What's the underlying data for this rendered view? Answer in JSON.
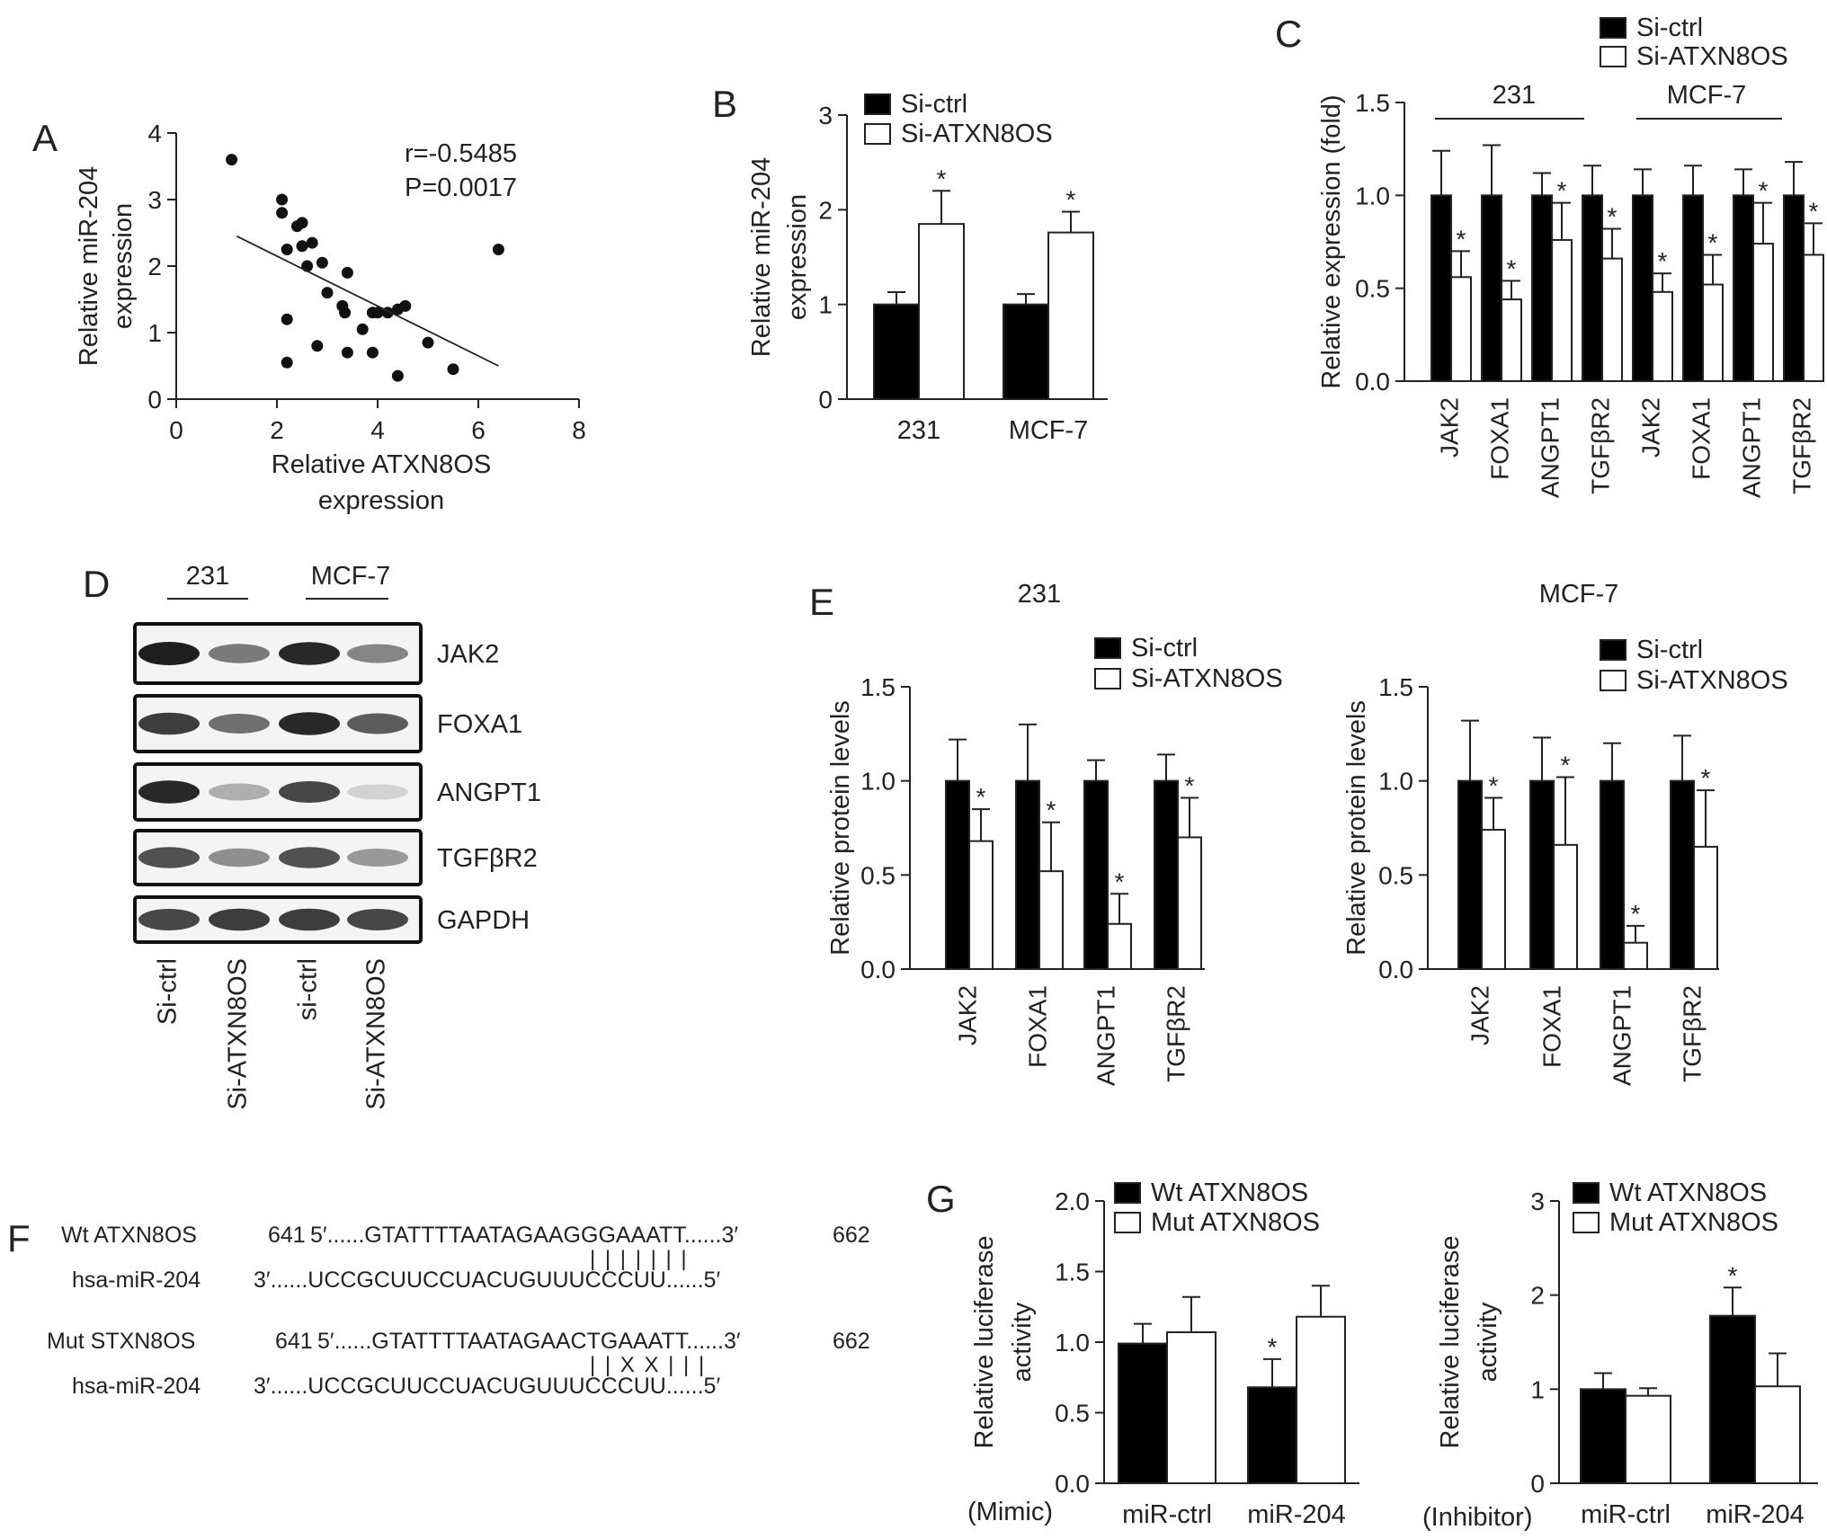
{
  "panels": {
    "A": {
      "letter": "A",
      "chart_data": {
        "type": "scatter",
        "xlabel": [
          "Relative ATXN8OS",
          "expression"
        ],
        "ylabel": [
          "Relative miR-204",
          "expression"
        ],
        "xlim": [
          0,
          8
        ],
        "ylim": [
          0,
          4
        ],
        "xticks": [
          0,
          2,
          4,
          6,
          8
        ],
        "yticks": [
          0,
          1,
          2,
          3,
          4
        ],
        "r_text": "r=-0.5485",
        "p_text": "P=0.0017",
        "points": [
          [
            1.1,
            3.6
          ],
          [
            2.1,
            3.0
          ],
          [
            2.1,
            2.8
          ],
          [
            2.2,
            2.25
          ],
          [
            2.4,
            2.6
          ],
          [
            2.5,
            2.65
          ],
          [
            2.5,
            2.3
          ],
          [
            2.6,
            2.0
          ],
          [
            2.7,
            2.35
          ],
          [
            2.9,
            2.05
          ],
          [
            3.0,
            1.6
          ],
          [
            3.4,
            1.9
          ],
          [
            3.3,
            1.4
          ],
          [
            3.35,
            1.3
          ],
          [
            3.7,
            1.05
          ],
          [
            3.9,
            1.3
          ],
          [
            4.0,
            1.3
          ],
          [
            4.2,
            1.3
          ],
          [
            4.4,
            1.35
          ],
          [
            4.55,
            1.4
          ],
          [
            2.2,
            1.2
          ],
          [
            2.2,
            0.55
          ],
          [
            2.8,
            0.8
          ],
          [
            3.4,
            0.7
          ],
          [
            3.9,
            0.7
          ],
          [
            4.4,
            0.35
          ],
          [
            5.0,
            0.85
          ],
          [
            5.5,
            0.45
          ],
          [
            6.4,
            2.25
          ]
        ],
        "fit_line": [
          [
            1.2,
            2.45
          ],
          [
            6.4,
            0.5
          ]
        ]
      }
    },
    "B": {
      "letter": "B",
      "chart_data": {
        "type": "bar",
        "ylabel": [
          "Relative miR-204",
          "expression"
        ],
        "ylim": [
          0,
          3
        ],
        "yticks": [
          0,
          1,
          2,
          3
        ],
        "categories": [
          "231",
          "MCF-7"
        ],
        "series": [
          {
            "name": "Si-ctrl",
            "values": [
              1.0,
              1.0
            ],
            "errors": [
              0.13,
              0.11
            ],
            "stars": [
              false,
              false
            ],
            "fill": "#000000"
          },
          {
            "name": "Si-ATXN8OS",
            "values": [
              1.85,
              1.76
            ],
            "errors": [
              0.35,
              0.22
            ],
            "stars": [
              true,
              true
            ],
            "fill": "#ffffff"
          }
        ]
      }
    },
    "C": {
      "letter": "C",
      "chart_data": {
        "type": "bar",
        "ylabel": [
          "Relative expression (fold)"
        ],
        "ylim": [
          0,
          1.5
        ],
        "yticks": [
          "0.0",
          "0.5",
          "1.0",
          "1.5"
        ],
        "groups": [
          "231",
          "MCF-7"
        ],
        "categories": [
          "JAK2",
          "FOXA1",
          "ANGPT1",
          "TGFβR2",
          "JAK2",
          "FOXA1",
          "ANGPT1",
          "TGFβR2"
        ],
        "series": [
          {
            "name": "Si-ctrl",
            "values": [
              1.0,
              1.0,
              1.0,
              1.0,
              1.0,
              1.0,
              1.0,
              1.0
            ],
            "errors": [
              0.24,
              0.27,
              0.12,
              0.16,
              0.14,
              0.16,
              0.14,
              0.18
            ],
            "stars": [
              false,
              false,
              false,
              false,
              false,
              false,
              false,
              false
            ],
            "fill": "#000000"
          },
          {
            "name": "Si-ATXN8OS",
            "values": [
              0.56,
              0.44,
              0.76,
              0.66,
              0.48,
              0.52,
              0.74,
              0.68
            ],
            "errors": [
              0.14,
              0.1,
              0.2,
              0.16,
              0.1,
              0.16,
              0.22,
              0.17
            ],
            "stars": [
              true,
              true,
              true,
              true,
              true,
              true,
              true,
              true
            ],
            "fill": "#ffffff"
          }
        ]
      }
    },
    "D": {
      "letter": "D",
      "groups": [
        "231",
        "MCF-7"
      ],
      "lanes": [
        "Si-ctrl",
        "Si-ATXN8OS",
        "si-ctrl",
        "Si-ATXN8OS"
      ],
      "proteins": [
        "JAK2",
        "FOXA1",
        "ANGPT1",
        "TGFβR2",
        "GAPDH"
      ],
      "band_intensity": [
        [
          1.0,
          0.55,
          0.95,
          0.5
        ],
        [
          0.85,
          0.6,
          0.95,
          0.7
        ],
        [
          0.95,
          0.3,
          0.8,
          0.12
        ],
        [
          0.75,
          0.45,
          0.75,
          0.4
        ],
        [
          0.8,
          0.85,
          0.85,
          0.8
        ]
      ]
    },
    "E": {
      "letter": "E",
      "charts": [
        {
          "title": "231",
          "chart_data": {
            "type": "bar",
            "ylabel": [
              "Relative protein levels"
            ],
            "ylim": [
              0,
              1.5
            ],
            "yticks": [
              "0.0",
              "0.5",
              "1.0",
              "1.5"
            ],
            "categories": [
              "JAK2",
              "FOXA1",
              "ANGPT1",
              "TGFβR2"
            ],
            "series": [
              {
                "name": "Si-ctrl",
                "values": [
                  1.0,
                  1.0,
                  1.0,
                  1.0
                ],
                "errors": [
                  0.22,
                  0.3,
                  0.11,
                  0.14
                ],
                "stars": [
                  false,
                  false,
                  false,
                  false
                ],
                "fill": "#000000"
              },
              {
                "name": "Si-ATXN8OS",
                "values": [
                  0.68,
                  0.52,
                  0.24,
                  0.7
                ],
                "errors": [
                  0.17,
                  0.26,
                  0.16,
                  0.21
                ],
                "stars": [
                  true,
                  true,
                  true,
                  true
                ],
                "fill": "#ffffff"
              }
            ]
          }
        },
        {
          "title": "MCF-7",
          "chart_data": {
            "type": "bar",
            "ylabel": [
              "Relative protein levels"
            ],
            "ylim": [
              0,
              1.5
            ],
            "yticks": [
              "0.0",
              "0.5",
              "1.0",
              "1.5"
            ],
            "categories": [
              "JAK2",
              "FOXA1",
              "ANGPT1",
              "TGFβR2"
            ],
            "series": [
              {
                "name": "Si-ctrl",
                "values": [
                  1.0,
                  1.0,
                  1.0,
                  1.0
                ],
                "errors": [
                  0.32,
                  0.23,
                  0.2,
                  0.24
                ],
                "stars": [
                  false,
                  false,
                  false,
                  false
                ],
                "fill": "#000000"
              },
              {
                "name": "Si-ATXN8OS",
                "values": [
                  0.74,
                  0.66,
                  0.14,
                  0.65
                ],
                "errors": [
                  0.17,
                  0.36,
                  0.09,
                  0.3
                ],
                "stars": [
                  true,
                  true,
                  true,
                  true
                ],
                "fill": "#ffffff"
              }
            ]
          }
        }
      ]
    },
    "F": {
      "letter": "F",
      "rows": [
        {
          "name": "Wt ATXN8OS",
          "start": "641",
          "seq": "5′......GTATTTTAATAGAAGGGAAATT......3′",
          "end": "662"
        },
        {
          "name": "hsa-miR-204",
          "start": "",
          "seq": "3′......UCCGCUUCCUACUGUUUCCCUU......5′",
          "end": ""
        },
        {
          "name": "Mut STXN8OS",
          "start": "641",
          "seq": "5′......GTATTTTAATAGAACTGAAATT......3′",
          "end": "662"
        },
        {
          "name": "hsa-miR-204",
          "start": "",
          "seq": "3′......UCCGCUUCCUACUGUUUCCCUU......5′",
          "end": ""
        }
      ],
      "pairing_wt": "| | | | | | |",
      "pairing_mut": "| | X X | | |"
    },
    "G": {
      "letter": "G",
      "charts": [
        {
          "treatment": "(Mimic)",
          "chart_data": {
            "type": "bar",
            "ylabel": [
              "Relative luciferase",
              "activity"
            ],
            "ylim": [
              0,
              2.0
            ],
            "yticks": [
              "0.0",
              "0.5",
              "1.0",
              "1.5",
              "2.0"
            ],
            "categories": [
              "miR-ctrl",
              "miR-204"
            ],
            "series": [
              {
                "name": "Wt ATXN8OS",
                "values": [
                  0.99,
                  0.68
                ],
                "errors": [
                  0.14,
                  0.2
                ],
                "stars": [
                  false,
                  true
                ],
                "fill": "#000000"
              },
              {
                "name": "Mut ATXN8OS",
                "values": [
                  1.07,
                  1.18
                ],
                "errors": [
                  0.25,
                  0.22
                ],
                "stars": [
                  false,
                  false
                ],
                "fill": "#ffffff"
              }
            ]
          }
        },
        {
          "treatment": "(Inhibitor)",
          "chart_data": {
            "type": "bar",
            "ylabel": [
              "Relative luciferase",
              "activity"
            ],
            "ylim": [
              0,
              3
            ],
            "yticks": [
              "0",
              "1",
              "2",
              "3"
            ],
            "categories": [
              "miR-ctrl",
              "miR-204"
            ],
            "series": [
              {
                "name": "Wt ATXN8OS",
                "values": [
                  1.0,
                  1.78
                ],
                "errors": [
                  0.17,
                  0.3
                ],
                "stars": [
                  false,
                  true
                ],
                "fill": "#000000"
              },
              {
                "name": "Mut ATXN8OS",
                "values": [
                  0.93,
                  1.03
                ],
                "errors": [
                  0.08,
                  0.35
                ],
                "stars": [
                  false,
                  false
                ],
                "fill": "#ffffff"
              }
            ]
          }
        }
      ]
    }
  }
}
